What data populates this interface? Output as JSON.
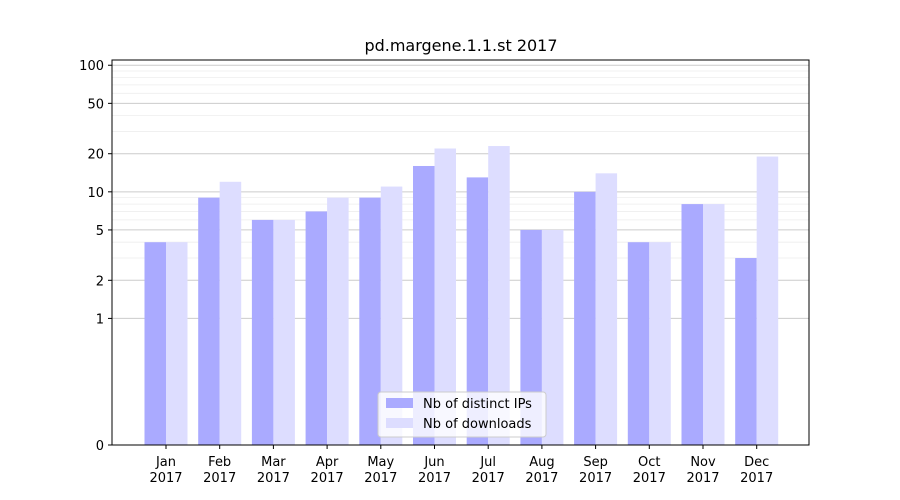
{
  "chart_data": {
    "type": "bar",
    "title": "pd.margene.1.1.st 2017",
    "xlabel": "",
    "ylabel": "",
    "yscale": "symlog",
    "ylim": [
      0,
      110
    ],
    "yticks": [
      0,
      1,
      2,
      5,
      10,
      20,
      50,
      100
    ],
    "ytick_labels": [
      "0",
      "1",
      "2",
      "5",
      "10",
      "20",
      "50",
      "100"
    ],
    "minor_yticks": [
      3,
      4,
      6,
      7,
      8,
      9,
      30,
      40,
      60,
      70,
      80,
      90
    ],
    "grid": true,
    "legend_position": "lower-center",
    "categories": [
      [
        "Jan",
        "2017"
      ],
      [
        "Feb",
        "2017"
      ],
      [
        "Mar",
        "2017"
      ],
      [
        "Apr",
        "2017"
      ],
      [
        "May",
        "2017"
      ],
      [
        "Jun",
        "2017"
      ],
      [
        "Jul",
        "2017"
      ],
      [
        "Aug",
        "2017"
      ],
      [
        "Sep",
        "2017"
      ],
      [
        "Oct",
        "2017"
      ],
      [
        "Nov",
        "2017"
      ],
      [
        "Dec",
        "2017"
      ]
    ],
    "series": [
      {
        "name": "Nb of distinct IPs",
        "color": "#aaaaff",
        "values": [
          4,
          9,
          6,
          7,
          9,
          16,
          13,
          5,
          10,
          4,
          8,
          3
        ]
      },
      {
        "name": "Nb of downloads",
        "color": "#ddddff",
        "values": [
          4,
          12,
          6,
          9,
          11,
          22,
          23,
          5,
          14,
          4,
          8,
          19
        ]
      }
    ]
  }
}
